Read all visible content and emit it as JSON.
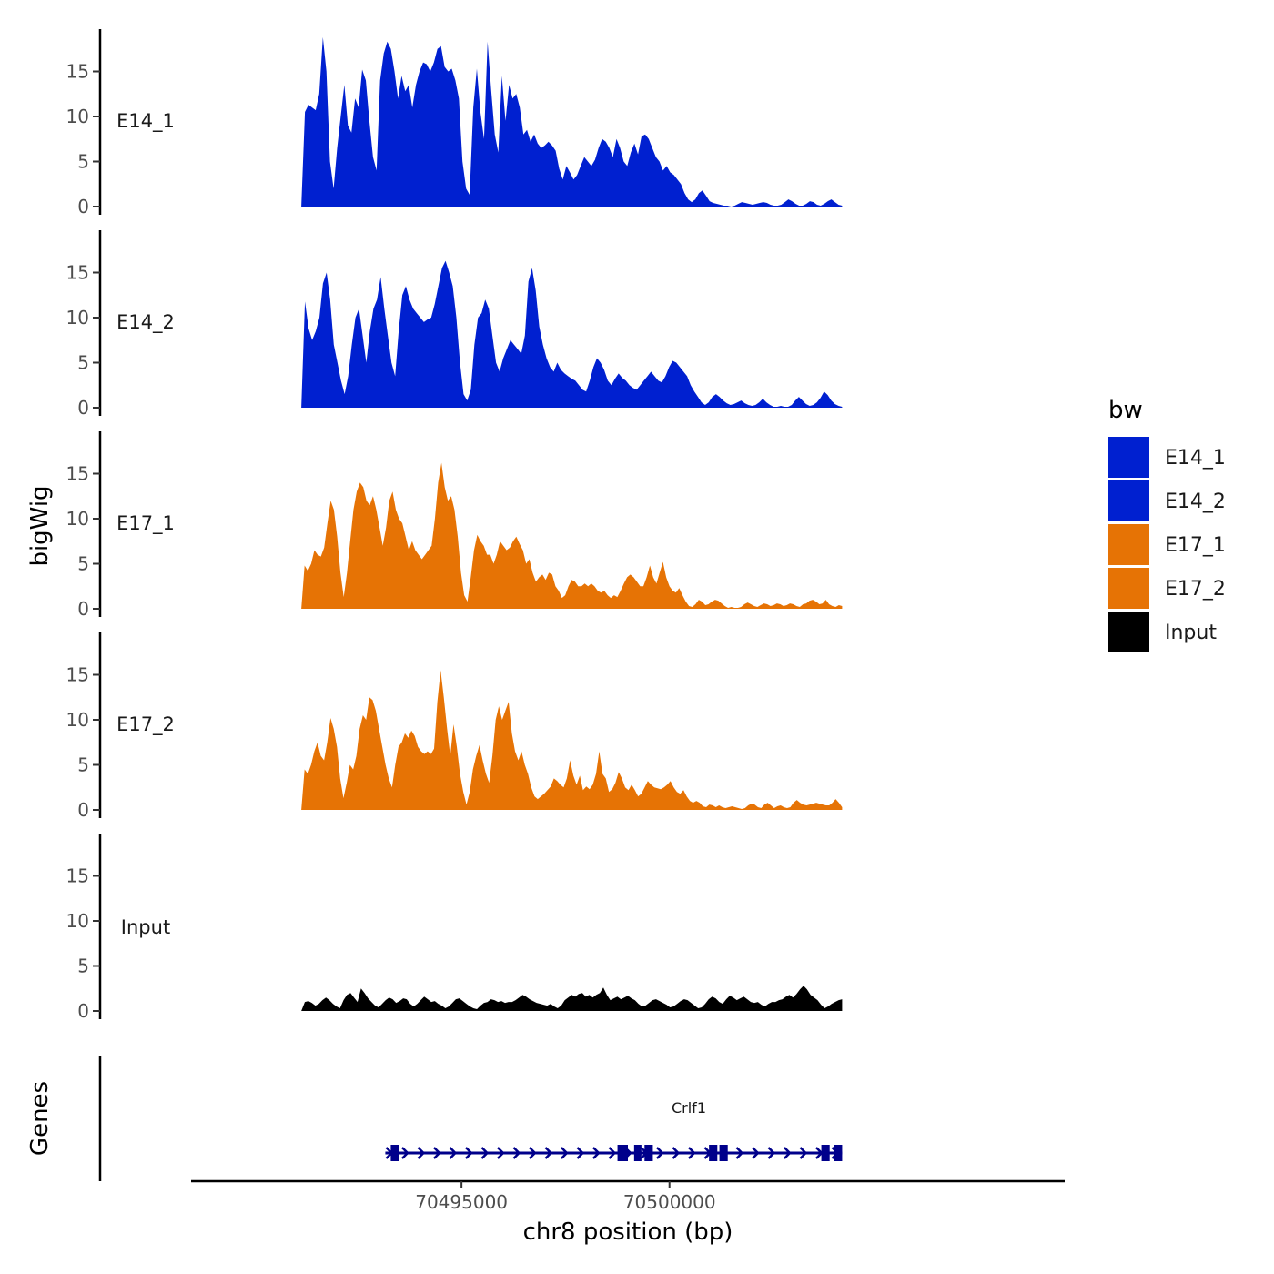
{
  "chart_data": {
    "type": "area",
    "title": "",
    "xlabel": "chr8 position (bp)",
    "ylabel": "bigWig",
    "genes_label": "Genes",
    "xlim": [
      70488500,
      70509500
    ],
    "x_ticks": [
      70495000,
      70500000
    ],
    "x_tick_labels": [
      "70495000",
      "70500000"
    ],
    "ylim": [
      0,
      20
    ],
    "y_ticks": [
      0,
      5,
      10,
      15
    ],
    "y_tick_labels": [
      "0",
      "5",
      "10",
      "15"
    ],
    "data_range": [
      70491150,
      70504150
    ],
    "legend": {
      "title": "bw",
      "position": "right",
      "entries": [
        {
          "label": "E14_1",
          "color": "#0020d0"
        },
        {
          "label": "E14_2",
          "color": "#0020d0"
        },
        {
          "label": "E17_1",
          "color": "#e67305"
        },
        {
          "label": "E17_2",
          "color": "#e67305"
        },
        {
          "label": "Input",
          "color": "#000000"
        }
      ]
    },
    "series": [
      {
        "name": "E14_1",
        "color": "#0020d0",
        "values": [
          0,
          10.5,
          11.3,
          11,
          10.7,
          12.5,
          18.8,
          15,
          5,
          2,
          6.5,
          10,
          13.5,
          9,
          8.2,
          12,
          11,
          15.2,
          14,
          9.5,
          5.5,
          4,
          14,
          17,
          18.3,
          17.5,
          15,
          12,
          14.5,
          12.8,
          13.5,
          11,
          13.5,
          15,
          16,
          15.8,
          15,
          16,
          17.5,
          17.8,
          15.5,
          15,
          15.3,
          14,
          12,
          5,
          2,
          1.3,
          11,
          15.3,
          10.5,
          7.5,
          18.3,
          13,
          8,
          6,
          14.5,
          9.5,
          13.5,
          12,
          12.5,
          11,
          8,
          8.5,
          7.2,
          8,
          7,
          6.5,
          6.8,
          7.2,
          6.8,
          6.2,
          4.2,
          3,
          4.5,
          3.8,
          3,
          3.5,
          4.5,
          5.5,
          5,
          4.5,
          5.2,
          6.5,
          7.5,
          7.2,
          6.5,
          5.5,
          7.5,
          6.5,
          5,
          4.5,
          6,
          7,
          5.8,
          7.8,
          8,
          7.5,
          6.5,
          5.5,
          5,
          4,
          4.5,
          3.8,
          3.5,
          3,
          2.5,
          1.5,
          0.8,
          0.5,
          0.8,
          1.5,
          1.8,
          1.2,
          0.6,
          0.4,
          0.3,
          0.2,
          0.1,
          0.1,
          0,
          0.1,
          0.3,
          0.5,
          0.4,
          0.3,
          0.2,
          0.3,
          0.4,
          0.5,
          0.4,
          0.2,
          0.1,
          0.1,
          0.2,
          0.5,
          0.8,
          0.6,
          0.3,
          0.1,
          0.1,
          0.3,
          0.6,
          0.5,
          0.2,
          0.1,
          0.3,
          0.6,
          0.8,
          0.5,
          0.2,
          0.1
        ],
        "label_y": 9.5
      },
      {
        "name": "E14_2",
        "color": "#0020d0",
        "values": [
          0,
          11.8,
          8.8,
          7.5,
          8.5,
          10,
          13.8,
          15,
          12,
          7,
          5,
          3,
          1.5,
          3.5,
          7,
          10,
          11,
          8,
          5,
          8.5,
          11,
          12,
          14.5,
          11,
          8,
          5,
          3.5,
          8.5,
          12.5,
          13.5,
          12,
          11,
          10.5,
          10,
          9.5,
          9.8,
          10,
          11.5,
          13.5,
          15.5,
          16.3,
          15,
          13.5,
          10,
          5,
          1.5,
          0.8,
          2,
          7,
          10,
          10.5,
          12,
          11,
          8,
          5,
          4,
          5.5,
          6.5,
          7.5,
          7,
          6.5,
          6,
          8,
          14,
          15.5,
          13,
          9,
          7,
          5.5,
          4.5,
          4,
          5,
          4.2,
          3.8,
          3.5,
          3.2,
          3,
          2.5,
          2,
          1.8,
          3,
          4.5,
          5.5,
          5,
          4.2,
          3,
          2.5,
          3.2,
          3.8,
          3.3,
          3,
          2.5,
          2.2,
          2,
          2.5,
          3,
          3.5,
          4,
          3.5,
          3,
          2.8,
          3.5,
          4.5,
          5.2,
          5,
          4.5,
          4,
          3.5,
          2.5,
          1.8,
          1.2,
          0.6,
          0.3,
          0.6,
          1.2,
          1.5,
          1.2,
          0.8,
          0.5,
          0.3,
          0.4,
          0.6,
          0.8,
          0.5,
          0.3,
          0.2,
          0.3,
          0.6,
          1,
          0.6,
          0.3,
          0.1,
          0.1,
          0.2,
          0.1,
          0.1,
          0.3,
          0.8,
          1.2,
          0.8,
          0.4,
          0.2,
          0.3,
          0.6,
          1.1,
          1.8,
          1.4,
          0.8,
          0.4,
          0.2,
          0.1
        ],
        "label_y": 9.5
      },
      {
        "name": "E17_1",
        "color": "#e67305",
        "values": [
          0,
          4.8,
          4.2,
          5,
          6.5,
          6,
          5.8,
          6.8,
          9.5,
          12,
          11,
          8,
          4,
          1.3,
          4,
          7.5,
          11,
          13,
          14,
          13.5,
          12,
          11.5,
          12.5,
          11,
          9,
          7,
          9,
          12,
          13,
          11,
          10,
          9.5,
          8,
          6.5,
          7.5,
          6.5,
          6,
          5.5,
          6,
          6.5,
          7,
          10,
          14,
          16.2,
          13.5,
          12,
          12.5,
          11,
          8,
          4,
          1.5,
          0.8,
          3.5,
          6.5,
          8.2,
          7.5,
          7,
          6,
          6,
          5,
          6,
          7.5,
          7,
          6.5,
          6.8,
          7.5,
          8,
          7.2,
          6.5,
          5,
          5.5,
          4,
          3,
          3.5,
          3.8,
          3.2,
          4,
          3.8,
          2.5,
          2,
          1.2,
          1.5,
          2.5,
          3.2,
          3,
          2.5,
          2.5,
          2.8,
          2.5,
          2.8,
          2.5,
          2,
          1.8,
          2,
          1.5,
          1.2,
          1.5,
          1.3,
          2,
          2.8,
          3.5,
          3.8,
          3.5,
          3,
          2.5,
          2.5,
          3.5,
          4.8,
          3.5,
          2.8,
          4,
          5.2,
          3.5,
          2.5,
          2,
          1.8,
          2.3,
          1.5,
          0.8,
          0.3,
          0.2,
          0.5,
          1,
          0.8,
          0.4,
          0.5,
          0.8,
          1,
          0.9,
          0.6,
          0.3,
          0.1,
          0.2,
          0.1,
          0.1,
          0.2,
          0.5,
          0.7,
          0.5,
          0.3,
          0.2,
          0.4,
          0.6,
          0.5,
          0.3,
          0.4,
          0.6,
          0.5,
          0.3,
          0.4,
          0.6,
          0.5,
          0.3,
          0.2,
          0.5,
          0.6,
          0.9,
          1,
          0.8,
          0.5,
          0.6,
          1,
          0.5,
          0.3,
          0.2,
          0.4,
          0.3
        ],
        "label_y": 9.5
      },
      {
        "name": "E17_2",
        "color": "#e67305",
        "values": [
          0,
          4.5,
          4,
          5,
          6.5,
          7.5,
          6,
          5.5,
          7.5,
          10.2,
          9,
          7,
          3.5,
          1.3,
          3,
          5,
          4.5,
          6,
          9,
          10.5,
          10,
          12.5,
          12.2,
          11,
          9,
          7,
          5,
          3.5,
          2.5,
          5,
          7,
          7.5,
          8.5,
          8,
          8.8,
          8.2,
          7,
          6.5,
          6.2,
          6.5,
          6.2,
          6.8,
          12,
          15.5,
          12.5,
          9,
          6,
          9.5,
          7,
          4,
          2,
          0.6,
          2,
          4.5,
          6,
          7.2,
          5.5,
          4,
          3,
          6,
          10,
          11.5,
          10,
          11,
          12,
          8.5,
          6.5,
          5.5,
          6.5,
          5,
          4,
          2.5,
          1.5,
          1.2,
          1.5,
          1.8,
          2.2,
          2.6,
          3.5,
          3.2,
          2.8,
          2.5,
          3.5,
          5.5,
          3.8,
          2.8,
          3.8,
          2.2,
          2.6,
          2.3,
          2.8,
          4,
          6.5,
          4,
          3.5,
          2,
          2.3,
          3,
          4.2,
          3.5,
          2.5,
          2.2,
          2.8,
          2.2,
          1.5,
          1.8,
          2.5,
          3.2,
          2.8,
          2.5,
          2.4,
          2.3,
          2.5,
          2.8,
          3.2,
          2.5,
          2,
          1.8,
          2.2,
          1.5,
          1,
          0.8,
          1,
          0.8,
          0.4,
          0.3,
          0.6,
          0.5,
          0.3,
          0.5,
          0.3,
          0.2,
          0.3,
          0.4,
          0.3,
          0.2,
          0.1,
          0.2,
          0.5,
          0.7,
          0.6,
          0.3,
          0.2,
          0.6,
          0.8,
          0.5,
          0.2,
          0.4,
          0.5,
          0.3,
          0.2,
          0.3,
          0.8,
          1.1,
          0.8,
          0.6,
          0.5,
          0.6,
          0.7,
          0.8,
          0.7,
          0.6,
          0.5,
          0.5,
          0.8,
          1.2,
          0.8,
          0.3
        ],
        "label_y": 9.5
      },
      {
        "name": "Input",
        "color": "#000000",
        "values": [
          0,
          1,
          1.1,
          0.9,
          0.6,
          0.8,
          1.2,
          1.5,
          1.2,
          0.8,
          0.5,
          0.3,
          1.2,
          1.8,
          2,
          1.5,
          1,
          2.5,
          2,
          1.4,
          1,
          0.6,
          0.4,
          0.8,
          1.2,
          1.5,
          1.3,
          0.9,
          1.1,
          1.4,
          1.3,
          0.8,
          0.5,
          0.8,
          1.2,
          1.6,
          1.3,
          1,
          1.1,
          0.8,
          0.6,
          0.3,
          0.5,
          0.9,
          1.3,
          1.4,
          1.1,
          0.8,
          0.5,
          0.3,
          0.2,
          0.6,
          0.9,
          1,
          1.3,
          1.2,
          1,
          1.1,
          0.9,
          1,
          1,
          1.2,
          1.5,
          1.8,
          1.6,
          1.3,
          1.1,
          0.9,
          0.8,
          0.7,
          0.6,
          0.8,
          0.5,
          0.3,
          0.6,
          1.2,
          1.5,
          1.8,
          1.6,
          1.9,
          2,
          1.6,
          1.8,
          1.5,
          1.8,
          2,
          2.6,
          1.8,
          1.2,
          1.4,
          1.6,
          1.3,
          1.5,
          1.7,
          1.4,
          1.2,
          0.8,
          0.5,
          0.6,
          0.9,
          1.2,
          1.3,
          1.1,
          0.9,
          0.7,
          0.4,
          0.5,
          0.8,
          1.1,
          1.3,
          1.2,
          0.9,
          0.6,
          0.3,
          0.4,
          0.8,
          1.3,
          1.6,
          1.4,
          1,
          0.8,
          1.3,
          1.7,
          1.5,
          1.2,
          1.4,
          1.6,
          1.3,
          1,
          0.9,
          1,
          0.7,
          0.5,
          0.8,
          1,
          1,
          1.2,
          1.3,
          1.6,
          1.8,
          1.5,
          1.9,
          2.4,
          2.8,
          2.4,
          1.8,
          1.5,
          1.2,
          0.7,
          0.3,
          0.5,
          0.8,
          1,
          1.2,
          1.3
        ],
        "label_y": 9.3
      }
    ],
    "genes": [
      {
        "name": "Crlf1",
        "start": 70493300,
        "end": 70504150,
        "strand": "+",
        "exons": [
          [
            70493300,
            70493500
          ],
          [
            70498750,
            70499000
          ],
          [
            70499150,
            70499300
          ],
          [
            70499400,
            70499600
          ],
          [
            70500950,
            70501150
          ],
          [
            70501200,
            70501400
          ],
          [
            70503650,
            70503850
          ],
          [
            70503950,
            70504150
          ]
        ]
      }
    ]
  }
}
